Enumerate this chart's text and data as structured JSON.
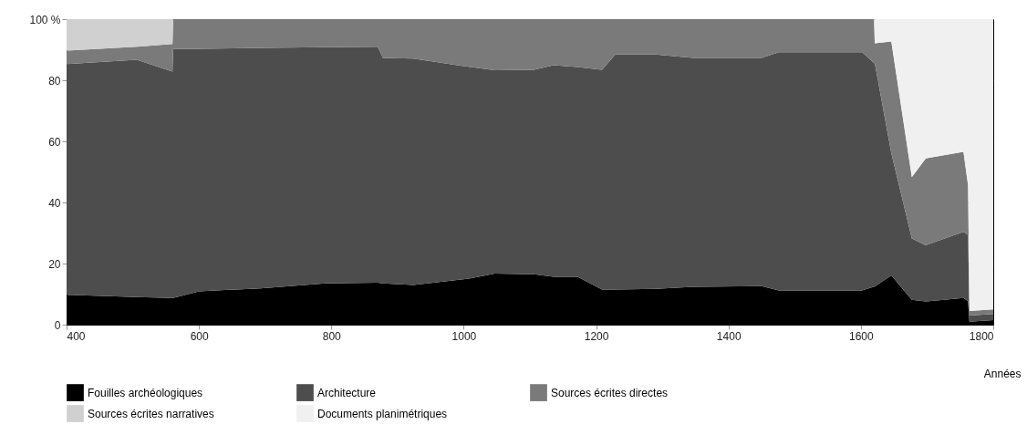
{
  "chart_data": {
    "type": "area",
    "stacked": true,
    "xlabel": "Années",
    "x": [
      400,
      506,
      560,
      561,
      600,
      693,
      791,
      870,
      878,
      924,
      1008,
      1047,
      1106,
      1136,
      1172,
      1209,
      1229,
      1290,
      1347,
      1450,
      1476,
      1602,
      1620,
      1621,
      1646,
      1677,
      1698,
      1755,
      1762,
      1764,
      1800
    ],
    "series": [
      {
        "name": "Fouilles archéologiques",
        "color": "#000000",
        "values": [
          9.8,
          9.0,
          8.7,
          8.7,
          10.9,
          11.9,
          13.5,
          13.7,
          13.5,
          13.0,
          15.1,
          16.7,
          16.5,
          15.7,
          15.7,
          11.5,
          11.5,
          11.7,
          12.4,
          12.6,
          11.2,
          11.2,
          12.5,
          12.5,
          16.1,
          8.1,
          7.6,
          8.7,
          7.6,
          1,
          1.5
        ]
      },
      {
        "name": "Architecture",
        "color": "#4d4d4d",
        "values": [
          75.5,
          77.7,
          74.1,
          81.6,
          79.4,
          78.7,
          77.3,
          77.3,
          73.8,
          74.1,
          69.3,
          66.6,
          66.9,
          69.2,
          68.6,
          71.9,
          76.9,
          76.7,
          74.9,
          74.7,
          78.0,
          78.0,
          73.1,
          73.1,
          40.0,
          20.1,
          18.4,
          21.7,
          21.7,
          2,
          2
        ]
      },
      {
        "name": "Sources écrites directes",
        "color": "#7a7a7a",
        "values": [
          4.4,
          4.3,
          9.1,
          9.7,
          9.7,
          9.4,
          9.2,
          9.0,
          12.7,
          12.9,
          15.6,
          16.7,
          16.6,
          15.1,
          15.7,
          16.6,
          11.6,
          11.6,
          12.7,
          12.7,
          10.8,
          10.8,
          14.4,
          6.5,
          36.6,
          20.1,
          28.4,
          26.2,
          16.2,
          1.5,
          1.5
        ]
      },
      {
        "name": "Sources écrites narratives",
        "color": "#d0d0d0",
        "values": [
          10.3,
          9.0,
          8.1,
          0,
          null,
          null,
          null,
          null,
          null,
          null,
          null,
          null,
          null,
          null,
          null,
          null,
          null,
          null,
          null,
          null,
          null,
          null,
          null,
          null,
          null,
          null,
          null,
          null,
          null,
          null,
          null
        ]
      },
      {
        "name": "Documents planimétriques",
        "color": "#f0f0f0",
        "values": [
          null,
          null,
          null,
          null,
          null,
          null,
          null,
          null,
          null,
          null,
          null,
          null,
          null,
          null,
          null,
          null,
          null,
          null,
          null,
          null,
          null,
          null,
          0,
          7.9,
          7.3,
          51.7,
          45.6,
          43.4,
          54.5,
          95.5,
          95
        ]
      }
    ],
    "xlim": [
      400,
      1800
    ],
    "xticks": [
      400,
      600,
      800,
      1000,
      1200,
      1400,
      1600,
      1800
    ],
    "ylim": [
      0,
      100
    ],
    "yticks": [
      0,
      20,
      40,
      60,
      80,
      {
        "value": 100,
        "label": "100 %"
      }
    ],
    "grid": "y",
    "legend": "bottom"
  }
}
